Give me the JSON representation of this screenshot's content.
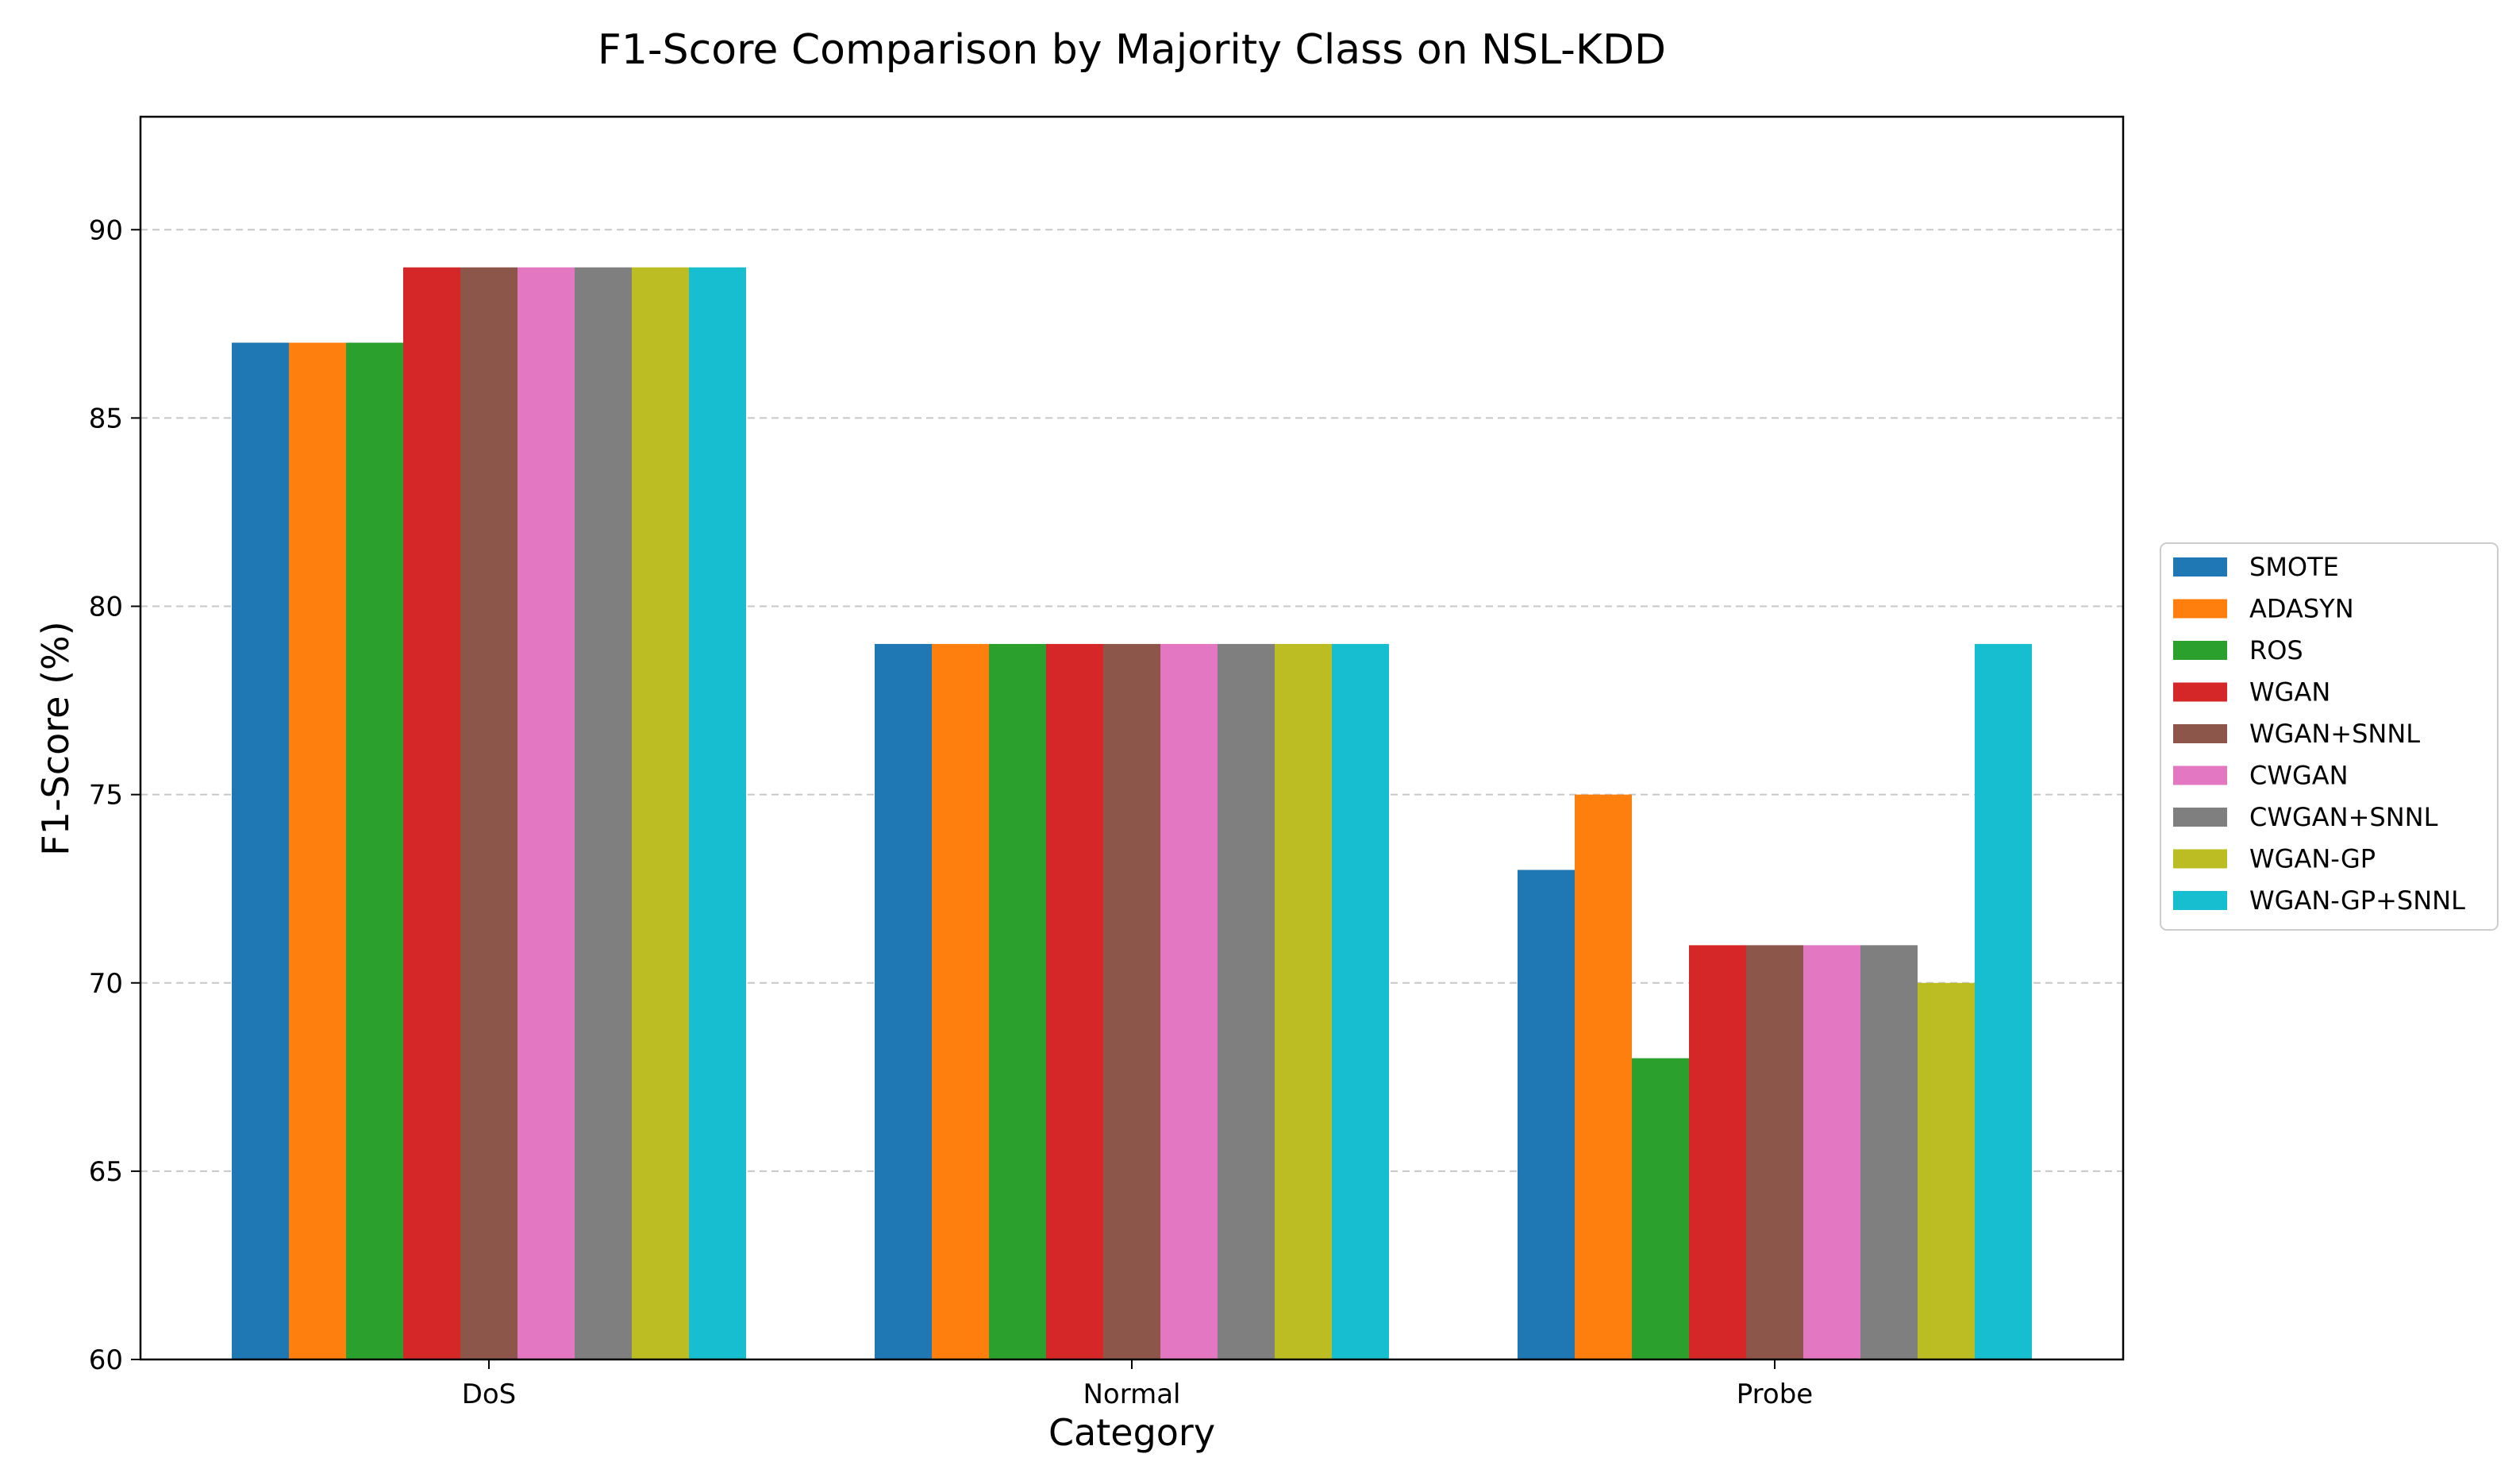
{
  "chart_data": {
    "type": "bar",
    "title": "F1-Score Comparison by Majority Class on NSL-KDD",
    "xlabel": "Category",
    "ylabel": "F1-Score (%)",
    "categories": [
      "DoS",
      "Normal",
      "Probe"
    ],
    "ylim": [
      60,
      93
    ],
    "yticks": [
      60,
      65,
      70,
      75,
      80,
      85,
      90
    ],
    "grid": "y-dashed",
    "legend_position": "right",
    "series": [
      {
        "name": "SMOTE",
        "color": "#1f77b4",
        "values": [
          87,
          79,
          73
        ]
      },
      {
        "name": "ADASYN",
        "color": "#ff7f0e",
        "values": [
          87,
          79,
          75
        ]
      },
      {
        "name": "ROS",
        "color": "#2ca02c",
        "values": [
          87,
          79,
          68
        ]
      },
      {
        "name": "WGAN",
        "color": "#d62728",
        "values": [
          89,
          79,
          71
        ]
      },
      {
        "name": "WGAN+SNNL",
        "color": "#8c564b",
        "values": [
          89,
          79,
          71
        ]
      },
      {
        "name": "CWGAN",
        "color": "#e377c2",
        "values": [
          89,
          79,
          71
        ]
      },
      {
        "name": "CWGAN+SNNL",
        "color": "#7f7f7f",
        "values": [
          89,
          79,
          71
        ]
      },
      {
        "name": "WGAN-GP",
        "color": "#bcbd22",
        "values": [
          89,
          79,
          70
        ]
      },
      {
        "name": "WGAN-GP+SNNL",
        "color": "#17becf",
        "values": [
          89,
          79,
          79
        ]
      }
    ]
  }
}
